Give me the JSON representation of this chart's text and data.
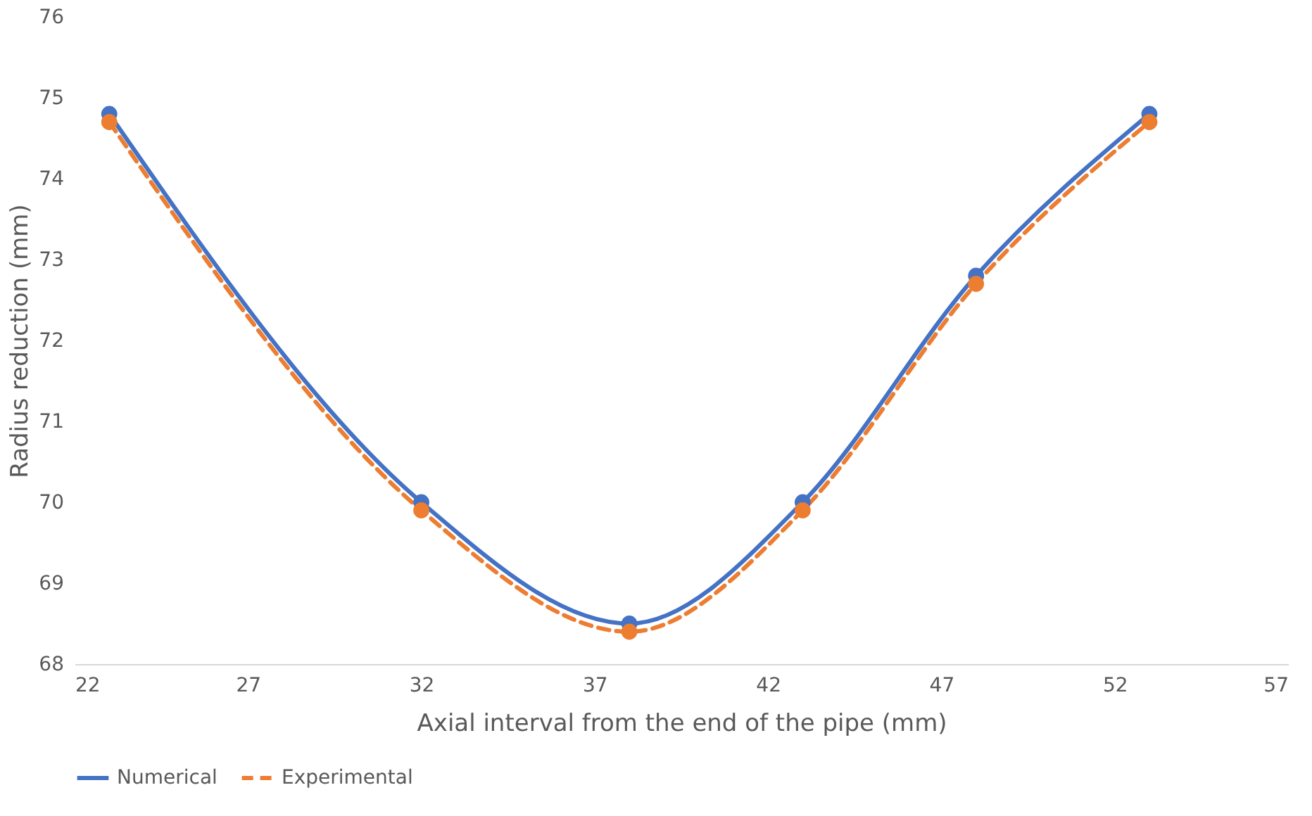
{
  "chart_data": {
    "type": "line",
    "xlabel": "Axial interval from the end of the pipe (mm)",
    "ylabel": "Radius reduction (mm)",
    "x": [
      23,
      32,
      38,
      43,
      48,
      53
    ],
    "series": [
      {
        "name": "Numerical",
        "color": "#4472c4",
        "values": [
          74.8,
          70.0,
          68.5,
          70.0,
          72.8,
          74.8
        ],
        "line_style": "solid"
      },
      {
        "name": "Experimental",
        "color": "#ed7d31",
        "values": [
          74.7,
          69.9,
          68.4,
          69.9,
          72.7,
          74.7
        ],
        "line_style": "dashed"
      }
    ],
    "xlim": [
      22,
      57
    ],
    "xticks": [
      22,
      27,
      32,
      37,
      42,
      47,
      52,
      57
    ],
    "ylim": [
      68,
      76
    ],
    "yticks": [
      68,
      69,
      70,
      71,
      72,
      73,
      74,
      75,
      76
    ],
    "legend": "bottom",
    "marker": "circle"
  }
}
